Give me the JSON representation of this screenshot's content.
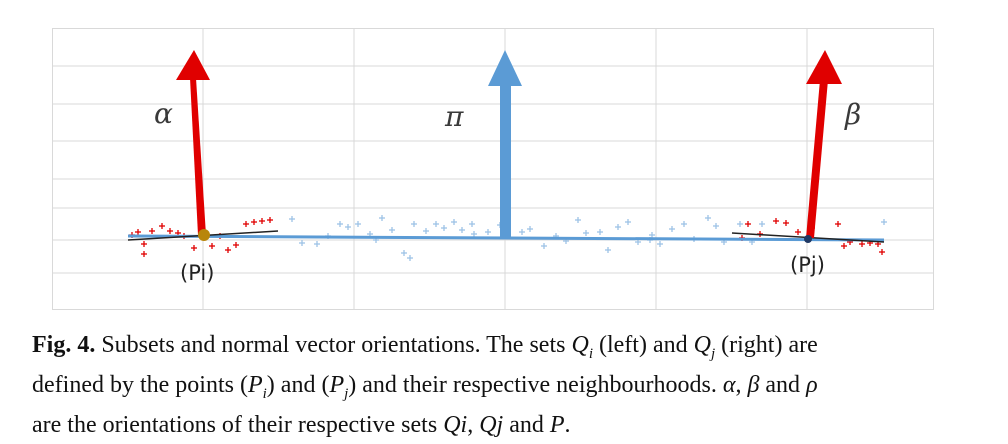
{
  "figure": {
    "labels": {
      "alpha": "α",
      "pi": "π",
      "beta": "β",
      "pi_point": "(Pi)",
      "pj_point": "(Pj)"
    },
    "colors": {
      "grid": "#d9d9d9",
      "line": "#5b9bd5",
      "blue_arrow": "#5b9bd5",
      "red_arrow": "#e00000",
      "red_points": "#e00000",
      "blue_points": "#9dc3e6",
      "pi_dot": "#b8860b",
      "pj_dot": "#1f3864"
    },
    "icons": [
      "red-arrow-icon",
      "blue-arrow-icon",
      "plus-marker-icon"
    ]
  },
  "caption": {
    "fig_label": "Fig. 4.",
    "line1": {
      "t1": " Subsets and normal vector orientations. The sets ",
      "q": "Q",
      "qi_sub": "i",
      "t2": " (left) and ",
      "qj_sub": "j",
      "t3": " (right) are"
    },
    "line2": {
      "t1": "defined by the points (",
      "p": "P",
      "pi_sub": "i",
      "t2": ") and (",
      "pj_sub": "j",
      "t3": ") and their respective neighbourhoods. ",
      "alpha": "α",
      "comma": ", ",
      "beta": "β",
      "t4": " and ",
      "rho": "ρ"
    },
    "line3": {
      "t1": "are the orientations of their respective sets ",
      "qi": "Qi",
      "comma1": ", ",
      "qj": "Qj",
      "t2": " and ",
      "p": "P",
      "t3": "."
    }
  }
}
